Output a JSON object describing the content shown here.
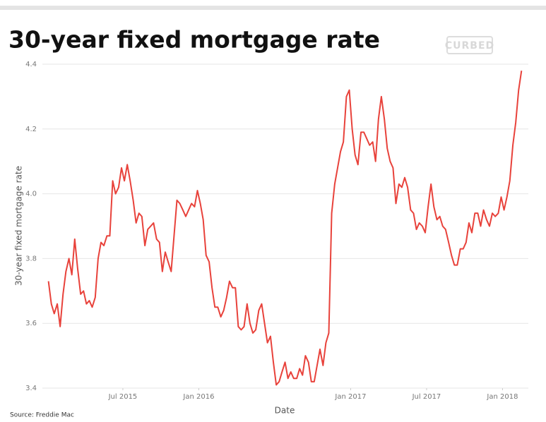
{
  "chart_data": {
    "type": "line",
    "title": "30-year fixed mortgage rate",
    "logo": "CURBED",
    "x_label": "Date",
    "y_label": "30-year fixed mortgage rate",
    "source": "Source: Freddie Mac",
    "color": "#e8423b",
    "grid": true,
    "xlim": [
      2014.97,
      2018.17
    ],
    "xticks": [
      {
        "value": 2015.5,
        "label": "Jul 2015"
      },
      {
        "value": 2016,
        "label": "Jan 2016"
      },
      {
        "value": 2017,
        "label": "Jan 2017"
      },
      {
        "value": 2017.5,
        "label": "Jul 2017"
      },
      {
        "value": 2018,
        "label": "Jan 2018"
      }
    ],
    "ylim": [
      3.4,
      4.4
    ],
    "yticks": [
      3.4,
      3.6,
      3.8,
      {
        "value": 4,
        "label": "4.0"
      },
      4.2,
      4.4
    ],
    "x": [
      2015.01,
      2015.029,
      2015.048,
      2015.068,
      2015.087,
      2015.106,
      2015.125,
      2015.145,
      2015.164,
      2015.183,
      2015.202,
      2015.222,
      2015.241,
      2015.26,
      2015.279,
      2015.298,
      2015.318,
      2015.337,
      2015.356,
      2015.375,
      2015.395,
      2015.414,
      2015.433,
      2015.452,
      2015.472,
      2015.491,
      2015.51,
      2015.529,
      2015.548,
      2015.568,
      2015.587,
      2015.606,
      2015.625,
      2015.645,
      2015.664,
      2015.683,
      2015.702,
      2015.722,
      2015.741,
      2015.76,
      2015.779,
      2015.798,
      2015.818,
      2015.837,
      2015.856,
      2015.875,
      2015.895,
      2015.914,
      2015.933,
      2015.952,
      2015.972,
      2015.991,
      2016.01,
      2016.029,
      2016.048,
      2016.068,
      2016.087,
      2016.106,
      2016.125,
      2016.145,
      2016.164,
      2016.183,
      2016.202,
      2016.222,
      2016.241,
      2016.26,
      2016.279,
      2016.298,
      2016.318,
      2016.337,
      2016.356,
      2016.375,
      2016.395,
      2016.414,
      2016.433,
      2016.452,
      2016.472,
      2016.491,
      2016.51,
      2016.529,
      2016.548,
      2016.568,
      2016.587,
      2016.606,
      2016.625,
      2016.645,
      2016.664,
      2016.683,
      2016.702,
      2016.722,
      2016.741,
      2016.76,
      2016.779,
      2016.798,
      2016.818,
      2016.837,
      2016.856,
      2016.875,
      2016.895,
      2016.914,
      2016.933,
      2016.952,
      2016.972,
      2016.991,
      2017.01,
      2017.029,
      2017.048,
      2017.068,
      2017.087,
      2017.106,
      2017.125,
      2017.145,
      2017.164,
      2017.183,
      2017.202,
      2017.222,
      2017.241,
      2017.26,
      2017.279,
      2017.298,
      2017.318,
      2017.337,
      2017.356,
      2017.375,
      2017.395,
      2017.414,
      2017.433,
      2017.452,
      2017.472,
      2017.491,
      2017.51,
      2017.529,
      2017.548,
      2017.568,
      2017.587,
      2017.606,
      2017.625,
      2017.645,
      2017.664,
      2017.683,
      2017.702,
      2017.722,
      2017.741,
      2017.76,
      2017.779,
      2017.798,
      2017.818,
      2017.837,
      2017.856,
      2017.875,
      2017.895,
      2017.914,
      2017.933,
      2017.952,
      2017.972,
      2017.991,
      2018.01,
      2018.029,
      2018.048,
      2018.068,
      2018.087,
      2018.106,
      2018.125
    ],
    "values": [
      3.73,
      3.66,
      3.63,
      3.66,
      3.59,
      3.69,
      3.76,
      3.8,
      3.75,
      3.86,
      3.77,
      3.69,
      3.7,
      3.66,
      3.67,
      3.65,
      3.68,
      3.8,
      3.85,
      3.84,
      3.87,
      3.87,
      4.04,
      4.0,
      4.02,
      4.08,
      4.04,
      4.09,
      4.04,
      3.98,
      3.91,
      3.94,
      3.93,
      3.84,
      3.89,
      3.9,
      3.91,
      3.86,
      3.85,
      3.76,
      3.82,
      3.79,
      3.76,
      3.87,
      3.98,
      3.97,
      3.95,
      3.93,
      3.95,
      3.97,
      3.96,
      4.01,
      3.97,
      3.92,
      3.81,
      3.79,
      3.71,
      3.65,
      3.65,
      3.62,
      3.64,
      3.68,
      3.73,
      3.71,
      3.71,
      3.59,
      3.58,
      3.59,
      3.66,
      3.6,
      3.57,
      3.58,
      3.64,
      3.66,
      3.6,
      3.54,
      3.56,
      3.48,
      3.41,
      3.42,
      3.45,
      3.48,
      3.43,
      3.45,
      3.43,
      3.43,
      3.46,
      3.44,
      3.5,
      3.48,
      3.42,
      3.42,
      3.47,
      3.52,
      3.47,
      3.54,
      3.57,
      3.94,
      4.03,
      4.08,
      4.13,
      4.16,
      4.3,
      4.32,
      4.2,
      4.12,
      4.09,
      4.19,
      4.19,
      4.17,
      4.15,
      4.16,
      4.1,
      4.23,
      4.3,
      4.23,
      4.14,
      4.1,
      4.08,
      3.97,
      4.03,
      4.02,
      4.05,
      4.02,
      3.95,
      3.94,
      3.89,
      3.91,
      3.9,
      3.88,
      3.96,
      4.03,
      3.96,
      3.92,
      3.93,
      3.9,
      3.89,
      3.85,
      3.81,
      3.78,
      3.78,
      3.83,
      3.83,
      3.85,
      3.91,
      3.88,
      3.94,
      3.94,
      3.9,
      3.95,
      3.92,
      3.9,
      3.94,
      3.93,
      3.94,
      3.99,
      3.95,
      3.99,
      4.04,
      4.15,
      4.22,
      4.32,
      4.38
    ]
  }
}
